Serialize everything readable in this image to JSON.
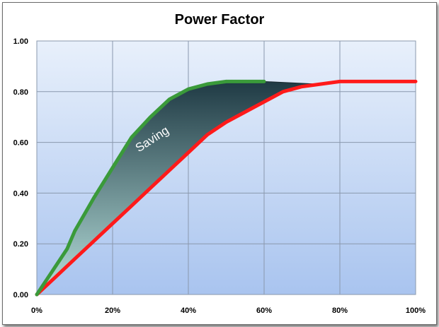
{
  "chart_data": {
    "type": "line",
    "title": "Power Factor",
    "xlabel": "",
    "ylabel": "",
    "xlim": [
      0,
      100
    ],
    "ylim": [
      0,
      1
    ],
    "x_tick_labels": [
      "0%",
      "20%",
      "40%",
      "60%",
      "80%",
      "100%"
    ],
    "y_tick_labels": [
      "0.00",
      "0.20",
      "0.40",
      "0.60",
      "0.80",
      "1.00"
    ],
    "grid": true,
    "annotation": "Saving",
    "series": [
      {
        "color": "#3a9a3a",
        "x": [
          0,
          4,
          8,
          10,
          15,
          20,
          25,
          30,
          35,
          40,
          45,
          50,
          55,
          60
        ],
        "y": [
          0.0,
          0.09,
          0.18,
          0.25,
          0.38,
          0.5,
          0.62,
          0.7,
          0.77,
          0.81,
          0.83,
          0.84,
          0.84,
          0.84
        ]
      },
      {
        "color": "#ff1a1a",
        "x": [
          0,
          5,
          10,
          15,
          20,
          25,
          30,
          35,
          40,
          45,
          50,
          55,
          60,
          65,
          70,
          75,
          80,
          85,
          90,
          95,
          100
        ],
        "y": [
          0.0,
          0.07,
          0.14,
          0.21,
          0.28,
          0.35,
          0.42,
          0.49,
          0.56,
          0.63,
          0.68,
          0.72,
          0.76,
          0.8,
          0.82,
          0.83,
          0.84,
          0.84,
          0.84,
          0.84,
          0.84
        ]
      }
    ],
    "saving_area": {
      "upper_x": [
        0,
        4,
        8,
        10,
        15,
        20,
        25,
        30,
        35,
        40,
        45,
        50,
        55,
        60,
        74
      ],
      "upper_y": [
        0.0,
        0.09,
        0.18,
        0.25,
        0.38,
        0.5,
        0.62,
        0.7,
        0.77,
        0.81,
        0.83,
        0.84,
        0.84,
        0.84,
        0.83
      ]
    },
    "colors": {
      "plot_bg_top": "#e8f0fb",
      "plot_bg_bottom": "#a9c4ef",
      "saving_fill_top": "#1f3a44",
      "saving_fill_bottom": "#b7e0dc",
      "grid": "#8a98ad"
    }
  }
}
